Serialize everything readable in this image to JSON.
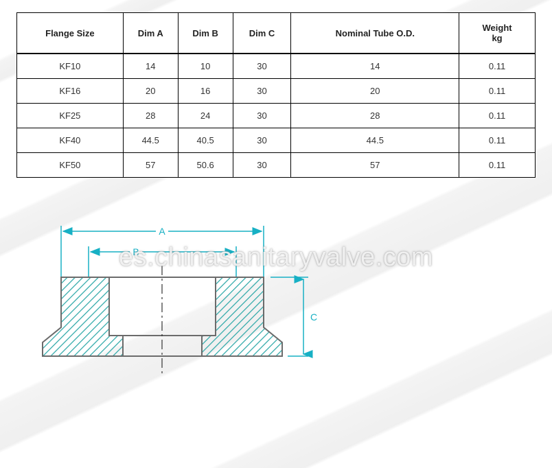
{
  "table": {
    "columns": [
      {
        "label": "Flange Size",
        "class": "col0"
      },
      {
        "label": "Dim A",
        "class": "col1"
      },
      {
        "label": "Dim B",
        "class": "col2"
      },
      {
        "label": "Dim C",
        "class": "col3"
      },
      {
        "label": "Nominal Tube O.D.",
        "class": "col4"
      },
      {
        "label_line1": "Weight",
        "label_line2": "kg",
        "class": "col5"
      }
    ],
    "rows": [
      [
        "KF10",
        "14",
        "10",
        "30",
        "14",
        "0.11"
      ],
      [
        "KF16",
        "20",
        "16",
        "30",
        "20",
        "0.11"
      ],
      [
        "KF25",
        "28",
        "24",
        "30",
        "28",
        "0.11"
      ],
      [
        "KF40",
        "44.5",
        "40.5",
        "30",
        "44.5",
        "0.11"
      ],
      [
        "KF50",
        "57",
        "50.6",
        "30",
        "57",
        "0.11"
      ]
    ]
  },
  "diagram": {
    "dim_labels": {
      "A": "A",
      "B": "B",
      "C": "C"
    },
    "stroke": "#17b0c4",
    "hatch": "#2ea8a8",
    "outline": "#6b6b6b",
    "centerline": "#333333"
  },
  "watermark": "es.chinasanitaryvalve.com"
}
